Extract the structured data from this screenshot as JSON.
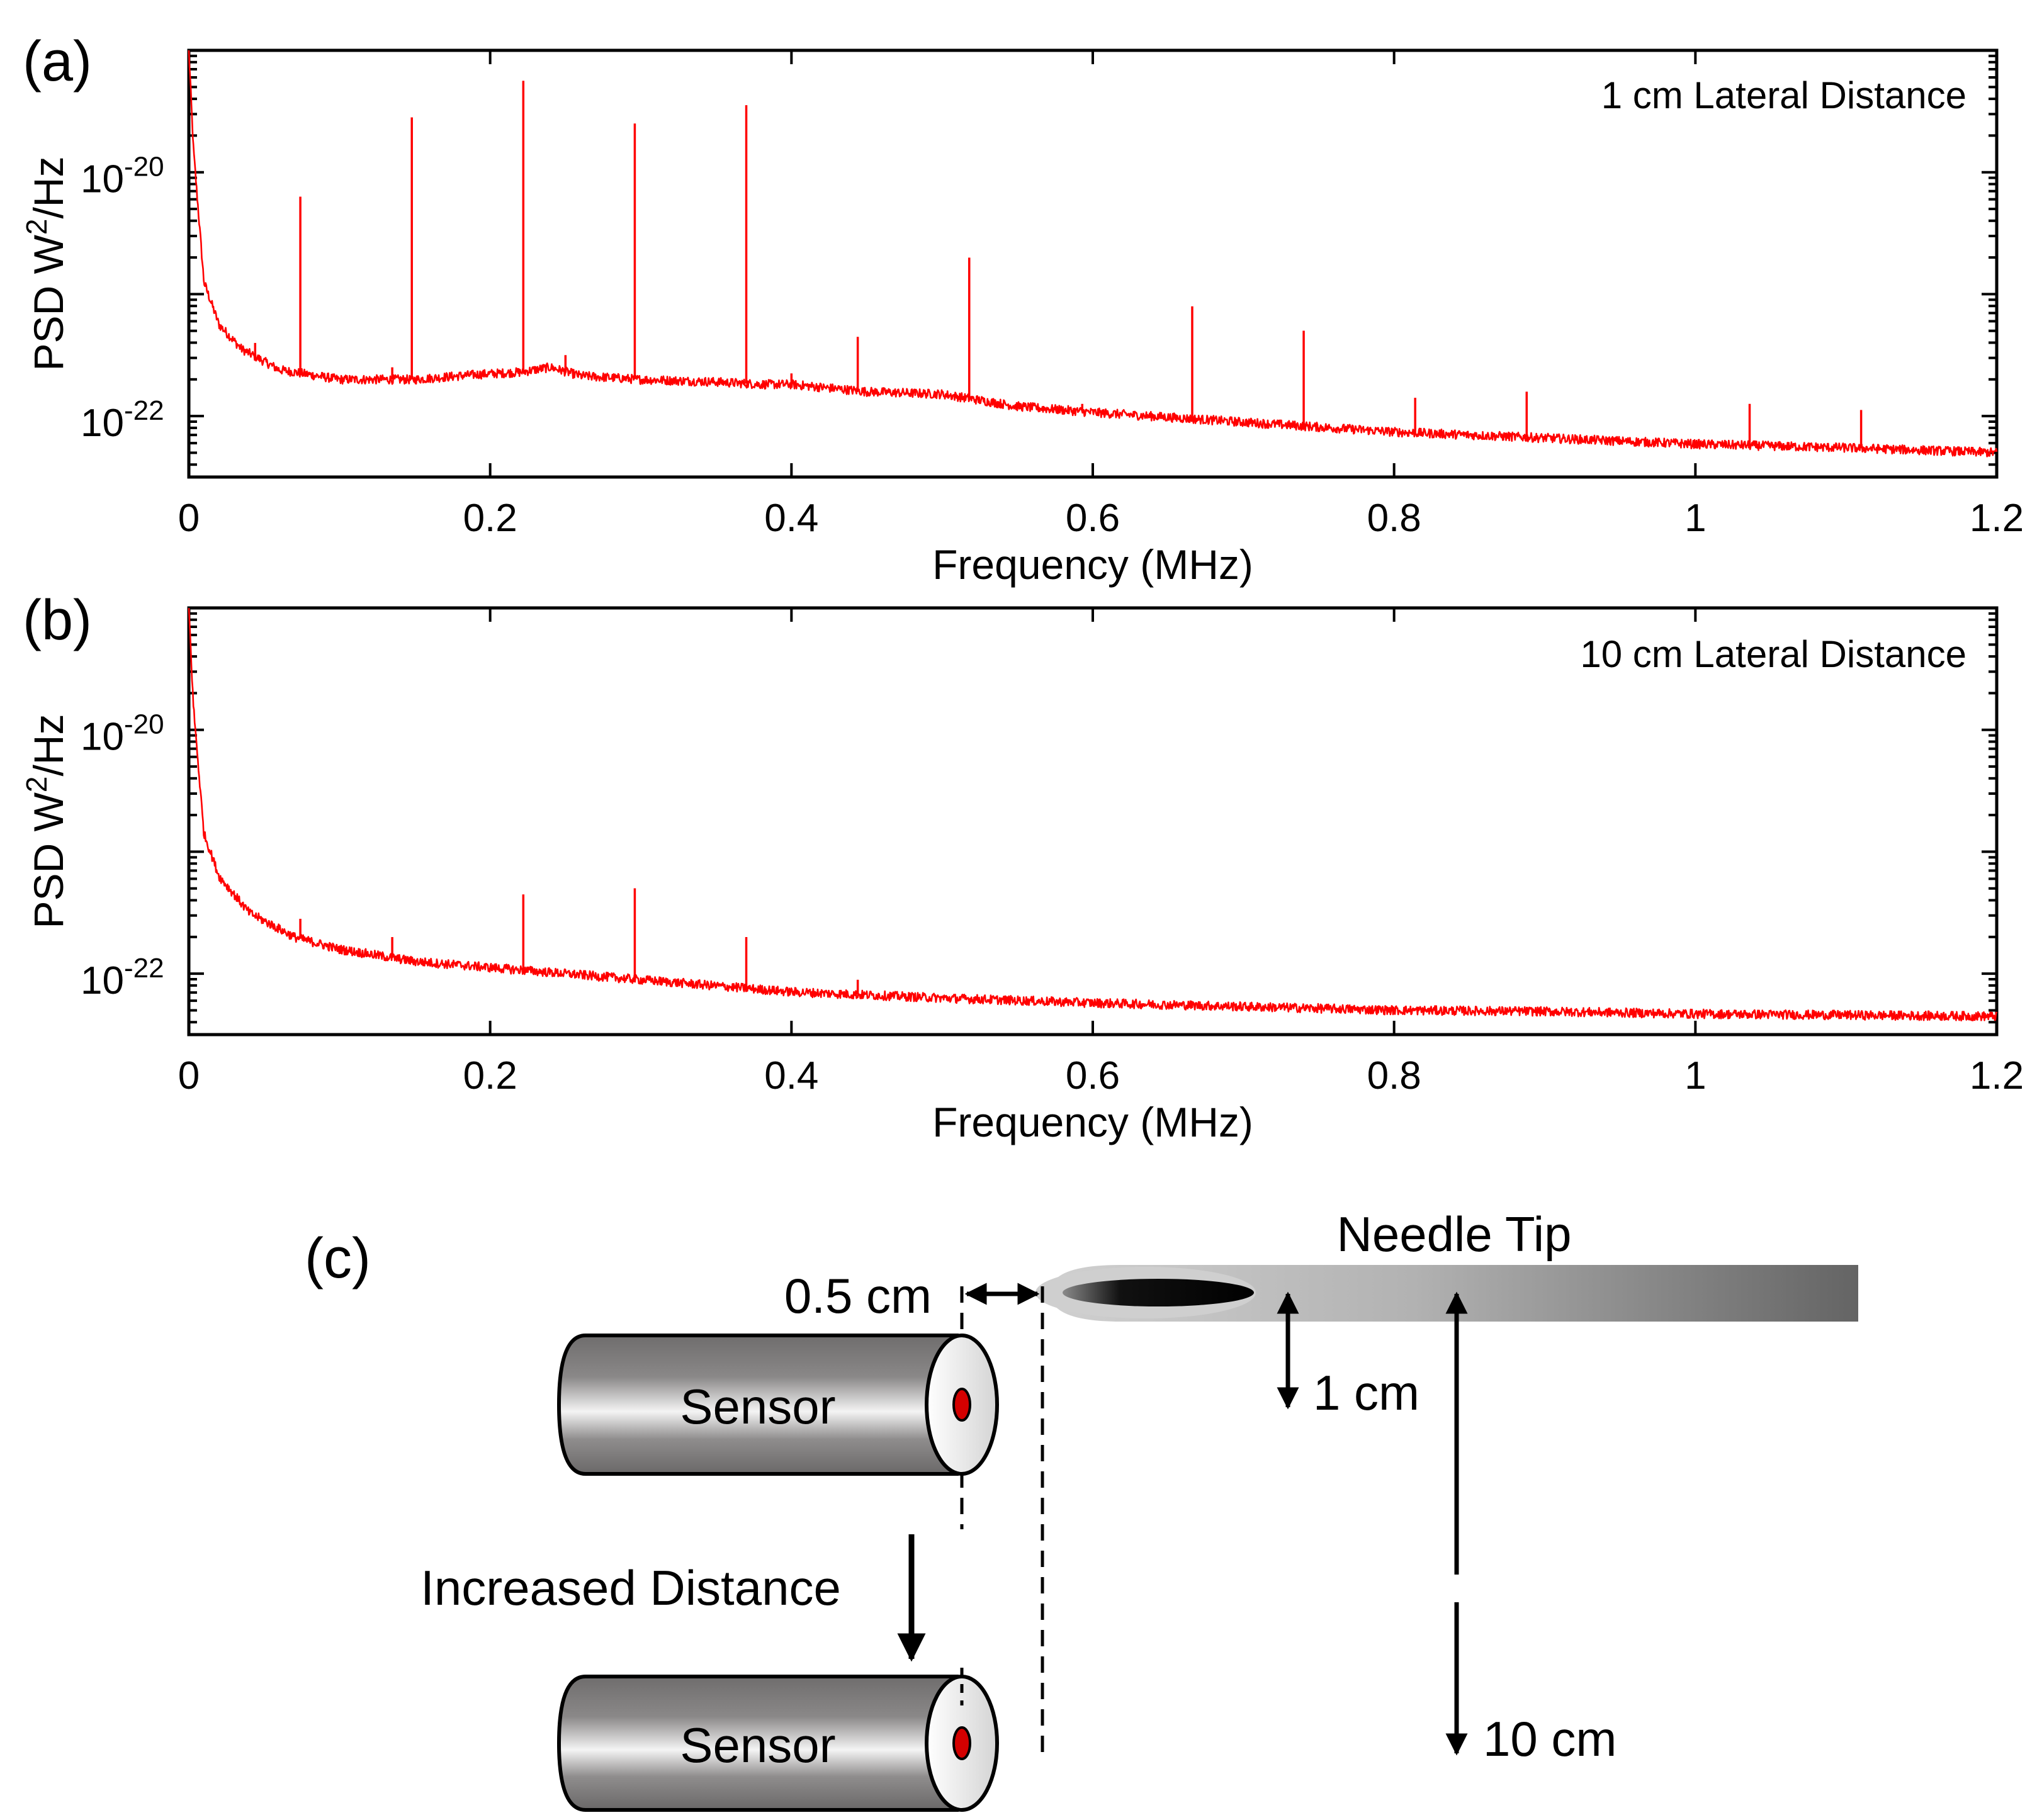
{
  "colors": {
    "trace": "#ff0000",
    "axis": "#000000",
    "background": "#ffffff",
    "sensor_body": "#7a7878",
    "needle": "#aaaaaa",
    "fiber_core": "#d40000"
  },
  "chart_data": [
    {
      "type": "line",
      "panel_label": "(a)",
      "annotation": "1 cm Lateral Distance",
      "xlabel": "Frequency (MHz)",
      "ylabel_main": "PSD W",
      "ylabel_sup": "2",
      "ylabel_tail": "/Hz",
      "xlim": [
        0,
        1.2
      ],
      "ylim_log10": [
        -22.5,
        -19
      ],
      "xticks": [
        "0",
        "0.2",
        "0.4",
        "0.6",
        "0.8",
        "1",
        "1.2"
      ],
      "xtick_values": [
        0,
        0.2,
        0.4,
        0.6,
        0.8,
        1.0,
        1.2
      ],
      "yticks": [
        {
          "base": "10",
          "exp": "-20",
          "log10": -20
        },
        {
          "base": "10",
          "exp": "-22",
          "log10": -22
        }
      ],
      "series": [
        {
          "name": "PSD",
          "baseline_log10": [
            [
              0.0,
              -19.0
            ],
            [
              0.003,
              -19.8
            ],
            [
              0.01,
              -20.9
            ],
            [
              0.02,
              -21.25
            ],
            [
              0.035,
              -21.45
            ],
            [
              0.06,
              -21.62
            ],
            [
              0.1,
              -21.7
            ],
            [
              0.15,
              -21.7
            ],
            [
              0.19,
              -21.66
            ],
            [
              0.22,
              -21.64
            ],
            [
              0.24,
              -21.6
            ],
            [
              0.26,
              -21.67
            ],
            [
              0.3,
              -21.7
            ],
            [
              0.35,
              -21.72
            ],
            [
              0.38,
              -21.74
            ],
            [
              0.4,
              -21.74
            ],
            [
              0.45,
              -21.8
            ],
            [
              0.5,
              -21.82
            ],
            [
              0.55,
              -21.92
            ],
            [
              0.6,
              -21.97
            ],
            [
              0.7,
              -22.05
            ],
            [
              0.8,
              -22.13
            ],
            [
              0.9,
              -22.18
            ],
            [
              1.0,
              -22.23
            ],
            [
              1.1,
              -22.26
            ],
            [
              1.2,
              -22.3
            ]
          ],
          "peaks": [
            [
              0.074,
              -20.2
            ],
            [
              0.148,
              -19.55
            ],
            [
              0.222,
              -19.25
            ],
            [
              0.296,
              -19.6
            ],
            [
              0.37,
              -19.45
            ],
            [
              0.444,
              -21.35
            ],
            [
              0.518,
              -20.7
            ],
            [
              0.666,
              -21.1
            ],
            [
              0.74,
              -21.3
            ],
            [
              0.814,
              -21.85
            ],
            [
              0.888,
              -21.8
            ],
            [
              1.036,
              -21.9
            ],
            [
              1.11,
              -21.95
            ],
            [
              0.044,
              -21.4
            ],
            [
              0.135,
              -21.6
            ],
            [
              0.25,
              -21.5
            ],
            [
              0.4,
              -21.65
            ],
            [
              0.593,
              -21.9
            ]
          ]
        }
      ]
    },
    {
      "type": "line",
      "panel_label": "(b)",
      "annotation": "10 cm Lateral Distance",
      "xlabel": "Frequency (MHz)",
      "ylabel_main": "PSD W",
      "ylabel_sup": "2",
      "ylabel_tail": "/Hz",
      "xlim": [
        0,
        1.2
      ],
      "ylim_log10": [
        -22.5,
        -19
      ],
      "xticks": [
        "0",
        "0.2",
        "0.4",
        "0.6",
        "0.8",
        "1",
        "1.2"
      ],
      "xtick_values": [
        0,
        0.2,
        0.4,
        0.6,
        0.8,
        1.0,
        1.2
      ],
      "yticks": [
        {
          "base": "10",
          "exp": "-20",
          "log10": -20
        },
        {
          "base": "10",
          "exp": "-22",
          "log10": -22
        }
      ],
      "series": [
        {
          "name": "PSD",
          "baseline_log10": [
            [
              0.0,
              -19.0
            ],
            [
              0.003,
              -19.8
            ],
            [
              0.01,
              -20.85
            ],
            [
              0.02,
              -21.2
            ],
            [
              0.04,
              -21.5
            ],
            [
              0.07,
              -21.7
            ],
            [
              0.1,
              -21.8
            ],
            [
              0.15,
              -21.9
            ],
            [
              0.2,
              -21.95
            ],
            [
              0.3,
              -22.05
            ],
            [
              0.4,
              -22.15
            ],
            [
              0.5,
              -22.2
            ],
            [
              0.6,
              -22.24
            ],
            [
              0.7,
              -22.27
            ],
            [
              0.8,
              -22.3
            ],
            [
              0.9,
              -22.31
            ],
            [
              1.0,
              -22.33
            ],
            [
              1.1,
              -22.34
            ],
            [
              1.2,
              -22.35
            ]
          ],
          "peaks": [
            [
              0.074,
              -21.55
            ],
            [
              0.135,
              -21.7
            ],
            [
              0.222,
              -21.35
            ],
            [
              0.296,
              -21.3
            ],
            [
              0.37,
              -21.7
            ],
            [
              0.444,
              -22.05
            ]
          ]
        }
      ]
    }
  ],
  "diagram": {
    "panel_label": "(c)",
    "needle_label": "Needle Tip",
    "gap_label": "0.5 cm",
    "near_distance_label": "1 cm",
    "far_distance_label": "10 cm",
    "sensor_label_top": "Sensor",
    "sensor_label_bottom": "Sensor",
    "move_label": "Increased Distance"
  }
}
